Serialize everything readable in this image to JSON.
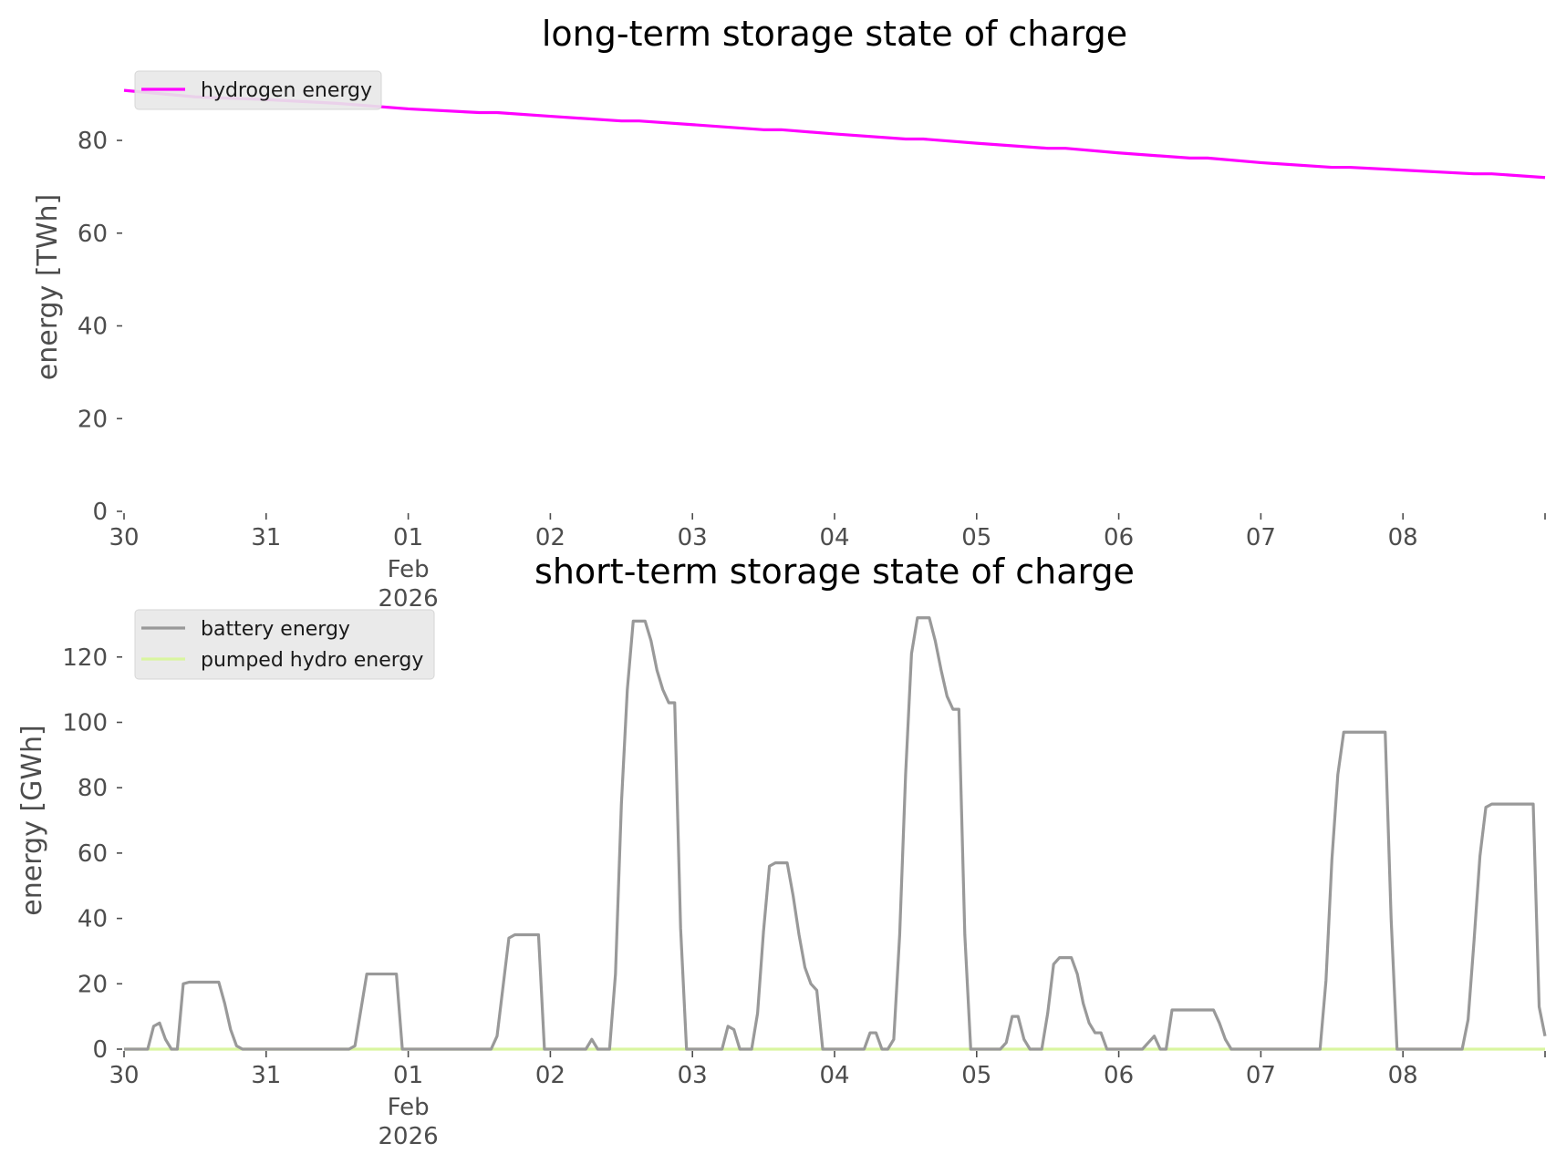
{
  "chart_data": [
    {
      "type": "line",
      "title": "long-term storage state of charge",
      "ylabel": "energy [TWh]",
      "xlabel": "",
      "ylim": [
        0,
        92
      ],
      "yticks": [
        0,
        20,
        40,
        60,
        80
      ],
      "xlim": [
        "2026-01-30",
        "2026-02-09"
      ],
      "xticks": [
        {
          "date": "2026-01-30",
          "label": "30"
        },
        {
          "date": "2026-01-31",
          "label": "31"
        },
        {
          "date": "2026-02-01",
          "label": "01",
          "sublabels": [
            "Feb",
            "2026"
          ]
        },
        {
          "date": "2026-02-02",
          "label": "02"
        },
        {
          "date": "2026-02-03",
          "label": "03"
        },
        {
          "date": "2026-02-04",
          "label": "04"
        },
        {
          "date": "2026-02-05",
          "label": "05"
        },
        {
          "date": "2026-02-06",
          "label": "06"
        },
        {
          "date": "2026-02-07",
          "label": "07"
        },
        {
          "date": "2026-02-08",
          "label": "08"
        }
      ],
      "grid": false,
      "legend_position": "top-left",
      "series": [
        {
          "name": "hydrogen energy",
          "color": "#ff00ff",
          "points": [
            [
              "2026-01-30 00:00",
              90.8
            ],
            [
              "2026-01-30 12:00",
              89.4
            ],
            [
              "2026-01-31 00:00",
              88.8
            ],
            [
              "2026-01-31 12:00",
              88.0
            ],
            [
              "2026-02-01 00:00",
              86.8
            ],
            [
              "2026-02-01 12:00",
              86.0
            ],
            [
              "2026-02-01 15:00",
              86.0
            ],
            [
              "2026-02-02 00:00",
              85.2
            ],
            [
              "2026-02-02 12:00",
              84.2
            ],
            [
              "2026-02-02 15:00",
              84.2
            ],
            [
              "2026-02-03 00:00",
              83.4
            ],
            [
              "2026-02-03 12:00",
              82.3
            ],
            [
              "2026-02-03 15:00",
              82.3
            ],
            [
              "2026-02-04 00:00",
              81.4
            ],
            [
              "2026-02-04 12:00",
              80.3
            ],
            [
              "2026-02-04 15:00",
              80.3
            ],
            [
              "2026-02-05 00:00",
              79.4
            ],
            [
              "2026-02-05 12:00",
              78.3
            ],
            [
              "2026-02-05 15:00",
              78.3
            ],
            [
              "2026-02-06 00:00",
              77.3
            ],
            [
              "2026-02-06 12:00",
              76.2
            ],
            [
              "2026-02-06 15:00",
              76.2
            ],
            [
              "2026-02-07 00:00",
              75.2
            ],
            [
              "2026-02-07 12:00",
              74.2
            ],
            [
              "2026-02-07 15:00",
              74.2
            ],
            [
              "2026-02-08 00:00",
              73.6
            ],
            [
              "2026-02-08 12:00",
              72.8
            ],
            [
              "2026-02-08 15:00",
              72.8
            ],
            [
              "2026-02-09 00:00",
              72.0
            ]
          ]
        }
      ]
    },
    {
      "type": "line",
      "title": "short-term storage state of charge",
      "ylabel": "energy [GWh]",
      "xlabel": "",
      "ylim": [
        0,
        135
      ],
      "yticks": [
        0,
        20,
        40,
        60,
        80,
        100,
        120
      ],
      "xlim": [
        "2026-01-30",
        "2026-02-09"
      ],
      "xticks": [
        {
          "date": "2026-01-30",
          "label": "30"
        },
        {
          "date": "2026-01-31",
          "label": "31"
        },
        {
          "date": "2026-02-01",
          "label": "01",
          "sublabels": [
            "Feb",
            "2026"
          ]
        },
        {
          "date": "2026-02-02",
          "label": "02"
        },
        {
          "date": "2026-02-03",
          "label": "03"
        },
        {
          "date": "2026-02-04",
          "label": "04"
        },
        {
          "date": "2026-02-05",
          "label": "05"
        },
        {
          "date": "2026-02-06",
          "label": "06"
        },
        {
          "date": "2026-02-07",
          "label": "07"
        },
        {
          "date": "2026-02-08",
          "label": "08"
        }
      ],
      "grid": false,
      "legend_position": "top-left",
      "series": [
        {
          "name": "battery energy",
          "color": "#999999",
          "points": [
            [
              "2026-01-30 00:00",
              0
            ],
            [
              "2026-01-30 04:00",
              0
            ],
            [
              "2026-01-30 05:00",
              7
            ],
            [
              "2026-01-30 06:00",
              8
            ],
            [
              "2026-01-30 07:00",
              3
            ],
            [
              "2026-01-30 08:00",
              0
            ],
            [
              "2026-01-30 09:00",
              0
            ],
            [
              "2026-01-30 10:00",
              20
            ],
            [
              "2026-01-30 11:00",
              20.5
            ],
            [
              "2026-01-30 16:00",
              20.5
            ],
            [
              "2026-01-30 17:00",
              14
            ],
            [
              "2026-01-30 18:00",
              6
            ],
            [
              "2026-01-30 19:00",
              1
            ],
            [
              "2026-01-30 20:00",
              0
            ],
            [
              "2026-01-31 14:00",
              0
            ],
            [
              "2026-01-31 15:00",
              1
            ],
            [
              "2026-01-31 17:00",
              23
            ],
            [
              "2026-01-31 22:00",
              23
            ],
            [
              "2026-01-31 23:00",
              0
            ],
            [
              "2026-02-01 14:00",
              0
            ],
            [
              "2026-02-01 15:00",
              4
            ],
            [
              "2026-02-01 17:00",
              34
            ],
            [
              "2026-02-01 18:00",
              35
            ],
            [
              "2026-02-01 22:00",
              35
            ],
            [
              "2026-02-01 23:00",
              0
            ],
            [
              "2026-02-02 06:00",
              0
            ],
            [
              "2026-02-02 07:00",
              3
            ],
            [
              "2026-02-02 08:00",
              0
            ],
            [
              "2026-02-02 10:00",
              0
            ],
            [
              "2026-02-02 11:00",
              23
            ],
            [
              "2026-02-02 12:00",
              75
            ],
            [
              "2026-02-02 13:00",
              110
            ],
            [
              "2026-02-02 14:00",
              131
            ],
            [
              "2026-02-02 16:00",
              131
            ],
            [
              "2026-02-02 17:00",
              125
            ],
            [
              "2026-02-02 18:00",
              116
            ],
            [
              "2026-02-02 19:00",
              110
            ],
            [
              "2026-02-02 20:00",
              106
            ],
            [
              "2026-02-02 21:00",
              106
            ],
            [
              "2026-02-02 22:00",
              37
            ],
            [
              "2026-02-02 23:00",
              0
            ],
            [
              "2026-02-03 05:00",
              0
            ],
            [
              "2026-02-03 06:00",
              7
            ],
            [
              "2026-02-03 07:00",
              6
            ],
            [
              "2026-02-03 08:00",
              0
            ],
            [
              "2026-02-03 10:00",
              0
            ],
            [
              "2026-02-03 11:00",
              11
            ],
            [
              "2026-02-03 12:00",
              36
            ],
            [
              "2026-02-03 13:00",
              56
            ],
            [
              "2026-02-03 14:00",
              57
            ],
            [
              "2026-02-03 16:00",
              57
            ],
            [
              "2026-02-03 17:00",
              47
            ],
            [
              "2026-02-03 18:00",
              35
            ],
            [
              "2026-02-03 19:00",
              25
            ],
            [
              "2026-02-03 20:00",
              20
            ],
            [
              "2026-02-03 21:00",
              18
            ],
            [
              "2026-02-03 22:00",
              0
            ],
            [
              "2026-02-04 05:00",
              0
            ],
            [
              "2026-02-04 06:00",
              5
            ],
            [
              "2026-02-04 07:00",
              5
            ],
            [
              "2026-02-04 08:00",
              0
            ],
            [
              "2026-02-04 09:00",
              0
            ],
            [
              "2026-02-04 10:00",
              3
            ],
            [
              "2026-02-04 11:00",
              35
            ],
            [
              "2026-02-04 12:00",
              84
            ],
            [
              "2026-02-04 13:00",
              121
            ],
            [
              "2026-02-04 14:00",
              132
            ],
            [
              "2026-02-04 16:00",
              132
            ],
            [
              "2026-02-04 17:00",
              125
            ],
            [
              "2026-02-04 18:00",
              116
            ],
            [
              "2026-02-04 19:00",
              108
            ],
            [
              "2026-02-04 20:00",
              104
            ],
            [
              "2026-02-04 21:00",
              104
            ],
            [
              "2026-02-04 22:00",
              35
            ],
            [
              "2026-02-04 23:00",
              0
            ],
            [
              "2026-02-05 04:00",
              0
            ],
            [
              "2026-02-05 05:00",
              2
            ],
            [
              "2026-02-05 06:00",
              10
            ],
            [
              "2026-02-05 07:00",
              10
            ],
            [
              "2026-02-05 08:00",
              3
            ],
            [
              "2026-02-05 09:00",
              0
            ],
            [
              "2026-02-05 11:00",
              0
            ],
            [
              "2026-02-05 12:00",
              11
            ],
            [
              "2026-02-05 13:00",
              26
            ],
            [
              "2026-02-05 14:00",
              28
            ],
            [
              "2026-02-05 16:00",
              28
            ],
            [
              "2026-02-05 17:00",
              23
            ],
            [
              "2026-02-05 18:00",
              14
            ],
            [
              "2026-02-05 19:00",
              8
            ],
            [
              "2026-02-05 20:00",
              5
            ],
            [
              "2026-02-05 21:00",
              5
            ],
            [
              "2026-02-05 22:00",
              0
            ],
            [
              "2026-02-06 04:00",
              0
            ],
            [
              "2026-02-06 05:00",
              2
            ],
            [
              "2026-02-06 06:00",
              4
            ],
            [
              "2026-02-06 07:00",
              0
            ],
            [
              "2026-02-06 08:00",
              0
            ],
            [
              "2026-02-06 09:00",
              12
            ],
            [
              "2026-02-06 16:00",
              12
            ],
            [
              "2026-02-06 17:00",
              8
            ],
            [
              "2026-02-06 18:00",
              3
            ],
            [
              "2026-02-06 19:00",
              0
            ],
            [
              "2026-02-07 10:00",
              0
            ],
            [
              "2026-02-07 11:00",
              21
            ],
            [
              "2026-02-07 12:00",
              58
            ],
            [
              "2026-02-07 13:00",
              84
            ],
            [
              "2026-02-07 14:00",
              97
            ],
            [
              "2026-02-07 21:00",
              97
            ],
            [
              "2026-02-07 22:00",
              40
            ],
            [
              "2026-02-07 23:00",
              0
            ],
            [
              "2026-02-08 10:00",
              0
            ],
            [
              "2026-02-08 11:00",
              9
            ],
            [
              "2026-02-08 12:00",
              33
            ],
            [
              "2026-02-08 13:00",
              59
            ],
            [
              "2026-02-08 14:00",
              74
            ],
            [
              "2026-02-08 15:00",
              75
            ],
            [
              "2026-02-08 22:00",
              75
            ],
            [
              "2026-02-08 23:00",
              13
            ],
            [
              "2026-02-09 00:00",
              4
            ]
          ]
        },
        {
          "name": "pumped hydro energy",
          "color": "#d9f5a0",
          "points": [
            [
              "2026-01-30 00:00",
              0
            ],
            [
              "2026-02-09 00:00",
              0
            ]
          ]
        }
      ]
    }
  ]
}
